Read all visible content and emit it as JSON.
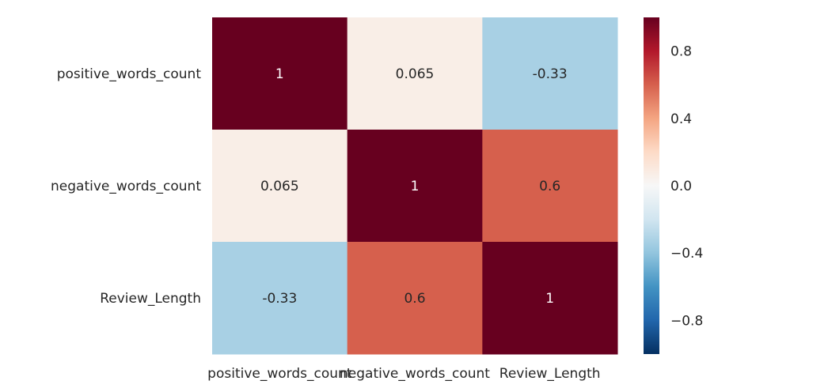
{
  "chart_data": {
    "type": "heatmap",
    "title": "",
    "xlabel": "",
    "ylabel": "",
    "x_categories": [
      "positive_words_count",
      "negative_words_count",
      "Review_Length"
    ],
    "y_categories": [
      "positive_words_count",
      "negative_words_count",
      "Review_Length"
    ],
    "values": [
      [
        1,
        0.065,
        -0.33
      ],
      [
        0.065,
        1,
        0.6
      ],
      [
        -0.33,
        0.6,
        1
      ]
    ],
    "annotations": [
      [
        "1",
        "0.065",
        "-0.33"
      ],
      [
        "0.065",
        "1",
        "0.6"
      ],
      [
        "-0.33",
        "0.6",
        "1"
      ]
    ],
    "colormap": "RdBu_r",
    "vmin": -1,
    "vmax": 1,
    "grid": false,
    "colorbar": {
      "placement": "right",
      "ticks": [
        0.8,
        0.4,
        0.0,
        -0.4,
        -0.8
      ],
      "tick_labels": [
        "0.8",
        "0.4",
        "0.0",
        "−0.4",
        "−0.8"
      ]
    }
  }
}
